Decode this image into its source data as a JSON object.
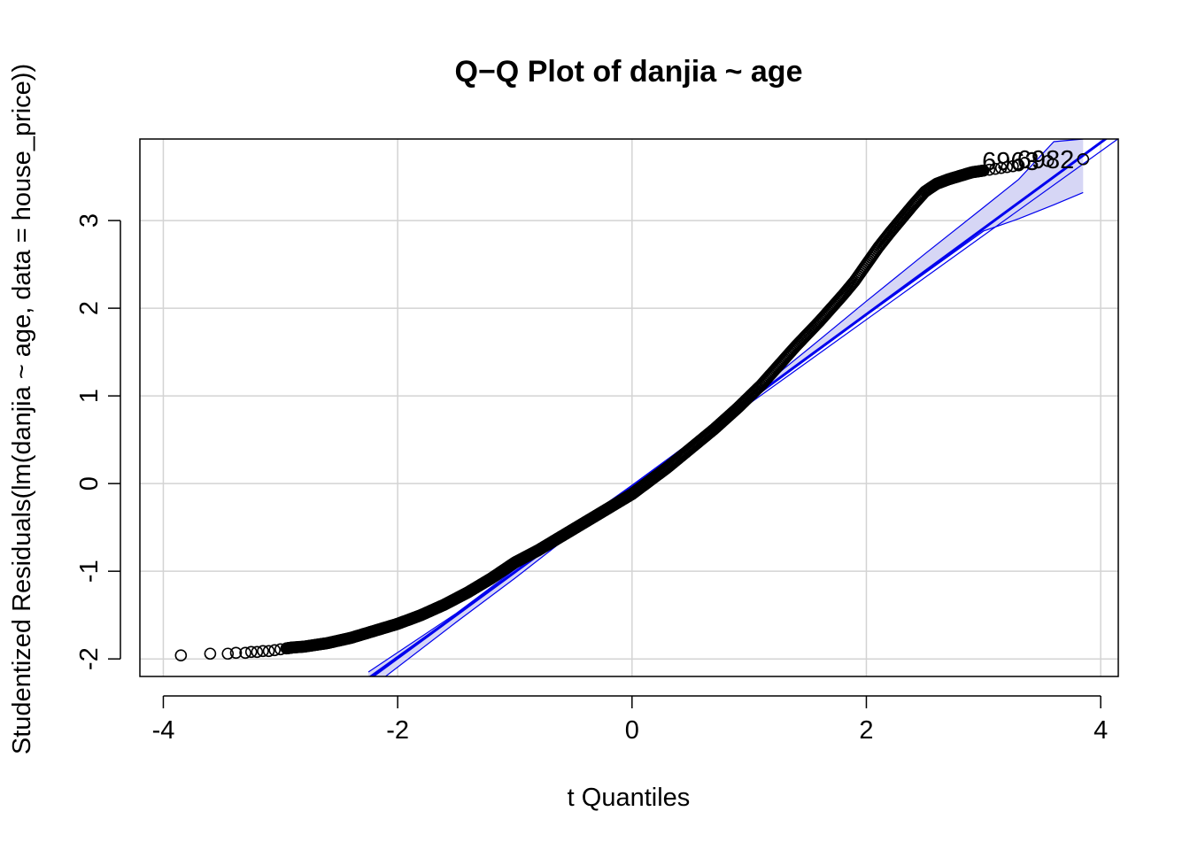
{
  "chart_data": {
    "type": "scatter",
    "title": "Q−Q Plot of danjia ~ age",
    "xlabel": "t Quantiles",
    "ylabel": "Studentized Residuals(lm(danjia ~ age, data = house_price))",
    "xlim": [
      -4.2,
      4.15
    ],
    "ylim": [
      -2.2,
      3.93
    ],
    "x_ticks": [
      -4,
      -2,
      0,
      2,
      4
    ],
    "x_tick_labels": [
      "-4",
      "-2",
      "0",
      "2",
      "4"
    ],
    "y_ticks": [
      -2,
      -1,
      0,
      1,
      2,
      3
    ],
    "y_tick_labels": [
      "-2",
      "-1",
      "0",
      "1",
      "2",
      "3"
    ],
    "grid": true,
    "point_shape": "open-circle",
    "point_color": "#000000",
    "reference_line_color": "#0000ee",
    "envelope_fill": "#d6d6f5",
    "reference_line": {
      "intercept": -0.03,
      "slope": 0.98
    },
    "reference_line_secondary": {
      "intercept": -0.05,
      "slope": 0.96
    },
    "confidence_envelope": {
      "x": [
        -2.25,
        -1.5,
        -1.0,
        -0.5,
        0.0,
        0.5,
        1.0,
        1.5,
        2.0,
        2.5,
        3.0,
        3.3,
        3.6,
        3.85
      ],
      "upper": [
        -2.15,
        -1.48,
        -0.98,
        -0.49,
        -0.02,
        0.47,
        0.99,
        1.53,
        2.08,
        2.62,
        3.15,
        3.47,
        3.9,
        3.93
      ],
      "lower": [
        -2.35,
        -1.58,
        -1.08,
        -0.56,
        -0.05,
        0.44,
        0.94,
        1.43,
        1.92,
        2.4,
        2.88,
        3.02,
        3.18,
        3.32
      ]
    },
    "sample_points": {
      "x": [
        -3.85,
        -3.6,
        -3.45,
        -3.38,
        -3.3,
        -3.25,
        -3.2,
        -3.15,
        -3.1,
        -3.05,
        -3.0,
        -2.95,
        -2.9,
        -2.8,
        -2.7,
        -2.6,
        -2.5,
        -2.4,
        -2.3,
        -2.2,
        -2.1,
        -2.0,
        -1.9,
        -1.8,
        -1.7,
        -1.6,
        -1.5,
        -1.4,
        -1.3,
        -1.2,
        -1.1,
        -1.0,
        -0.9,
        -0.8,
        -0.7,
        -0.6,
        -0.5,
        -0.4,
        -0.3,
        -0.2,
        -0.1,
        0.0,
        0.1,
        0.2,
        0.3,
        0.4,
        0.5,
        0.6,
        0.7,
        0.8,
        0.9,
        1.0,
        1.1,
        1.2,
        1.3,
        1.4,
        1.5,
        1.6,
        1.7,
        1.8,
        1.9,
        2.0,
        2.1,
        2.2,
        2.3,
        2.4,
        2.5,
        2.6,
        2.7,
        2.8,
        2.9,
        3.0,
        3.05,
        3.1,
        3.15,
        3.2,
        3.25,
        3.3
      ],
      "y": [
        -1.96,
        -1.94,
        -1.94,
        -1.93,
        -1.93,
        -1.92,
        -1.92,
        -1.91,
        -1.91,
        -1.9,
        -1.89,
        -1.88,
        -1.87,
        -1.86,
        -1.84,
        -1.82,
        -1.79,
        -1.76,
        -1.72,
        -1.68,
        -1.64,
        -1.6,
        -1.55,
        -1.5,
        -1.44,
        -1.38,
        -1.31,
        -1.24,
        -1.16,
        -1.08,
        -0.99,
        -0.9,
        -0.83,
        -0.76,
        -0.68,
        -0.6,
        -0.52,
        -0.44,
        -0.36,
        -0.28,
        -0.2,
        -0.12,
        -0.02,
        0.08,
        0.18,
        0.29,
        0.4,
        0.51,
        0.62,
        0.74,
        0.86,
        0.99,
        1.12,
        1.27,
        1.42,
        1.57,
        1.71,
        1.85,
        2.0,
        2.15,
        2.31,
        2.5,
        2.69,
        2.86,
        3.02,
        3.18,
        3.33,
        3.42,
        3.47,
        3.51,
        3.55,
        3.57,
        3.58,
        3.59,
        3.6,
        3.61,
        3.62,
        3.63
      ]
    },
    "labeled_points": [
      {
        "label": "6963",
        "x": 3.55,
        "y": 3.68
      },
      {
        "label": "6982",
        "x": 3.85,
        "y": 3.7
      }
    ]
  }
}
